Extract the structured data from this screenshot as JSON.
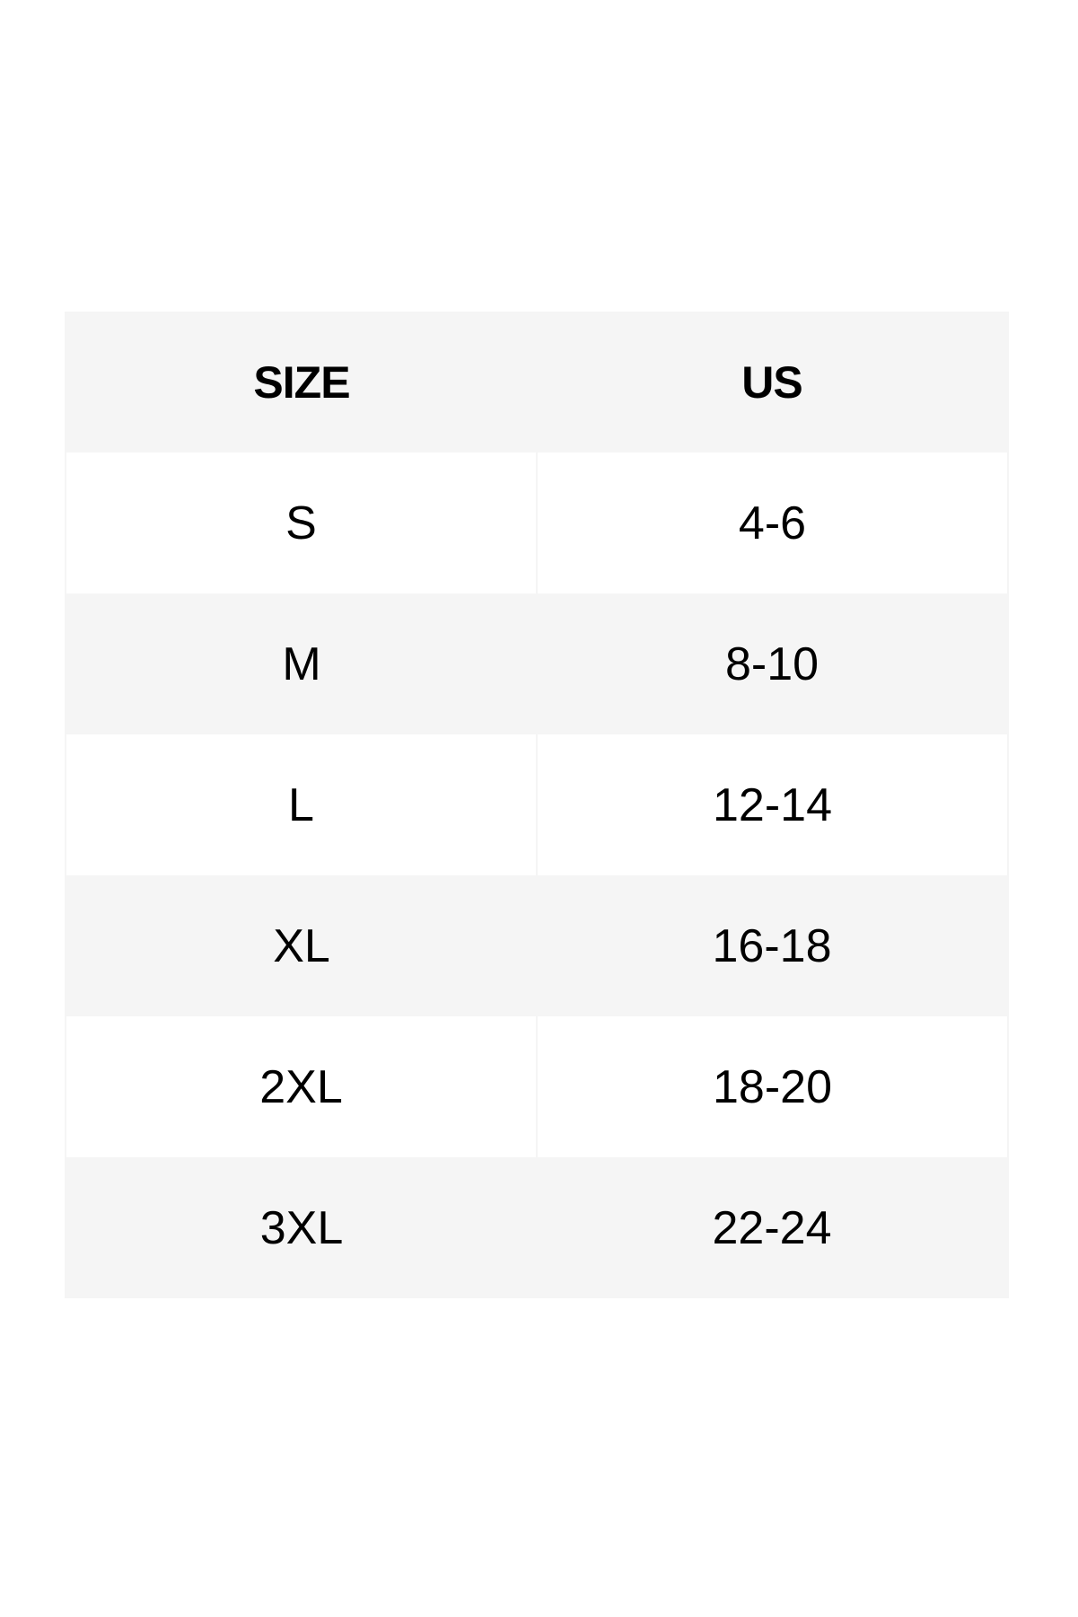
{
  "table": {
    "headers": [
      "SIZE",
      "US"
    ],
    "rows": [
      [
        "S",
        "4-6"
      ],
      [
        "M",
        "8-10"
      ],
      [
        "L",
        "12-14"
      ],
      [
        "XL",
        "16-18"
      ],
      [
        "2XL",
        "18-20"
      ],
      [
        "3XL",
        "22-24"
      ]
    ]
  },
  "colors": {
    "header_bg": "#f5f5f5",
    "alt_row_bg": "#f5f5f5",
    "row_bg": "#ffffff",
    "text": "#000000"
  }
}
